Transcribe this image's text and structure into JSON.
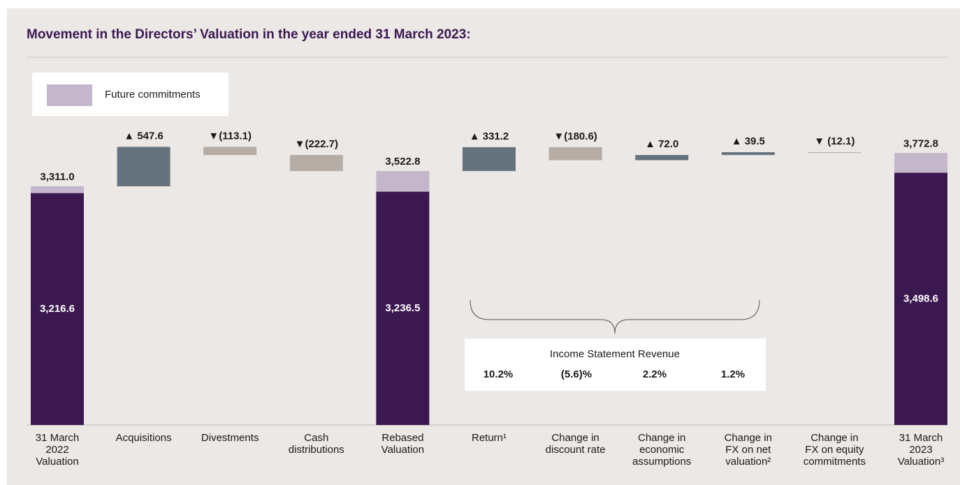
{
  "chart_data": {
    "type": "waterfall",
    "title": "Movement in the Directors’ Valuation in the year ended 31 March 2023:",
    "legend": {
      "label": "Future commitments",
      "color": "#c4b6cb"
    },
    "valuation_color": "#3c1850",
    "steps": [
      {
        "category": [
          "31 March",
          "2022",
          "Valuation"
        ],
        "total": 3311.0,
        "total_label": "3,311.0",
        "valuation": 3216.6,
        "valuation_label": "3,216.6"
      },
      {
        "category": [
          "Acquisitions"
        ],
        "value": 547.6,
        "value_label": "▲ 547.6",
        "color": "#66737d"
      },
      {
        "category": [
          "Divestments"
        ],
        "value": -113.1,
        "value_label": "▼(113.1)",
        "color": "#b6aca6"
      },
      {
        "category": [
          "Cash",
          "distributions"
        ],
        "value": -222.7,
        "value_label": "▼(222.7)",
        "color": "#b6aca6"
      },
      {
        "category": [
          "Rebased",
          "Valuation"
        ],
        "total": 3522.8,
        "total_label": "3,522.8",
        "valuation": 3236.5,
        "valuation_label": "3,236.5"
      },
      {
        "category": [
          "Return¹"
        ],
        "value": 331.2,
        "value_label": "▲ 331.2",
        "color": "#66737d"
      },
      {
        "category": [
          "Change in",
          "discount rate"
        ],
        "value": -180.6,
        "value_label": "▼(180.6)",
        "color": "#b6aca6"
      },
      {
        "category": [
          "Change in",
          "economic",
          "assumptions"
        ],
        "value": 72.0,
        "value_label": "▲ 72.0",
        "color": "#66737d"
      },
      {
        "category": [
          "Change in",
          "FX on net",
          "valuation²"
        ],
        "value": 39.5,
        "value_label": "▲ 39.5",
        "color": "#66737d"
      },
      {
        "category": [
          "Change in",
          "FX on equity",
          "commitments"
        ],
        "value": -12.1,
        "value_label": "▼ (12.1)",
        "color": "#b9b4b0"
      },
      {
        "category": [
          "31 March",
          "2023",
          "Valuation³"
        ],
        "total": 3772.8,
        "total_label": "3,772.8",
        "valuation": 3498.6,
        "valuation_label": "3,498.6"
      }
    ],
    "annotation": {
      "title": "Income Statement Revenue",
      "values": [
        10.2,
        -5.6,
        2.2,
        1.2
      ],
      "value_labels": [
        "10.2%",
        "(5.6)%",
        "2.2%",
        "1.2%"
      ]
    }
  }
}
